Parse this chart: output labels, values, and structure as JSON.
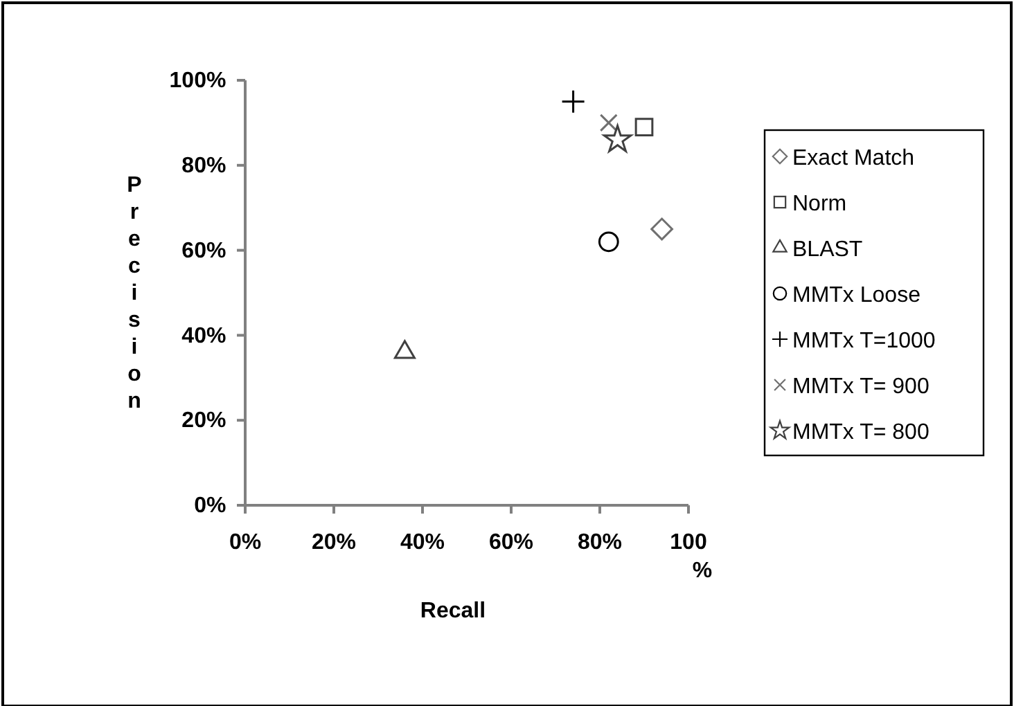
{
  "chart_data": {
    "type": "scatter",
    "xlabel": "Recall",
    "ylabel": "Precision",
    "xlim": [
      0,
      100
    ],
    "ylim": [
      0,
      100
    ],
    "xticks": [
      {
        "value": 0,
        "label": "0%"
      },
      {
        "value": 20,
        "label": "20%"
      },
      {
        "value": 40,
        "label": "40%"
      },
      {
        "value": 60,
        "label": "60%"
      },
      {
        "value": 80,
        "label": "80%"
      },
      {
        "value": 100,
        "label": "100%"
      }
    ],
    "yticks": [
      {
        "value": 0,
        "label": "0%"
      },
      {
        "value": 20,
        "label": "20%"
      },
      {
        "value": 40,
        "label": "40%"
      },
      {
        "value": 60,
        "label": "60%"
      },
      {
        "value": 80,
        "label": "80%"
      },
      {
        "value": 100,
        "label": "100%"
      }
    ],
    "legend": "right",
    "grid": false,
    "series": [
      {
        "name": "Exact Match",
        "color": "#707070",
        "marker": "diamond",
        "x": [
          94
        ],
        "values": [
          65
        ]
      },
      {
        "name": "Norm",
        "color": "#404040",
        "marker": "square",
        "x": [
          90
        ],
        "values": [
          89
        ]
      },
      {
        "name": "BLAST",
        "color": "#404040",
        "marker": "triangle",
        "x": [
          36
        ],
        "values": [
          36
        ]
      },
      {
        "name": "MMTx Loose",
        "color": "#000000",
        "marker": "circle",
        "x": [
          82
        ],
        "values": [
          62
        ]
      },
      {
        "name": "MMTx T=1000",
        "color": "#000000",
        "marker": "cross",
        "x": [
          74
        ],
        "values": [
          95
        ]
      },
      {
        "name": "MMTx T= 900",
        "color": "#707070",
        "marker": "x",
        "x": [
          82
        ],
        "values": [
          90
        ]
      },
      {
        "name": "MMTx T= 800",
        "color": "#404040",
        "marker": "star",
        "x": [
          84
        ],
        "values": [
          86
        ]
      }
    ]
  }
}
